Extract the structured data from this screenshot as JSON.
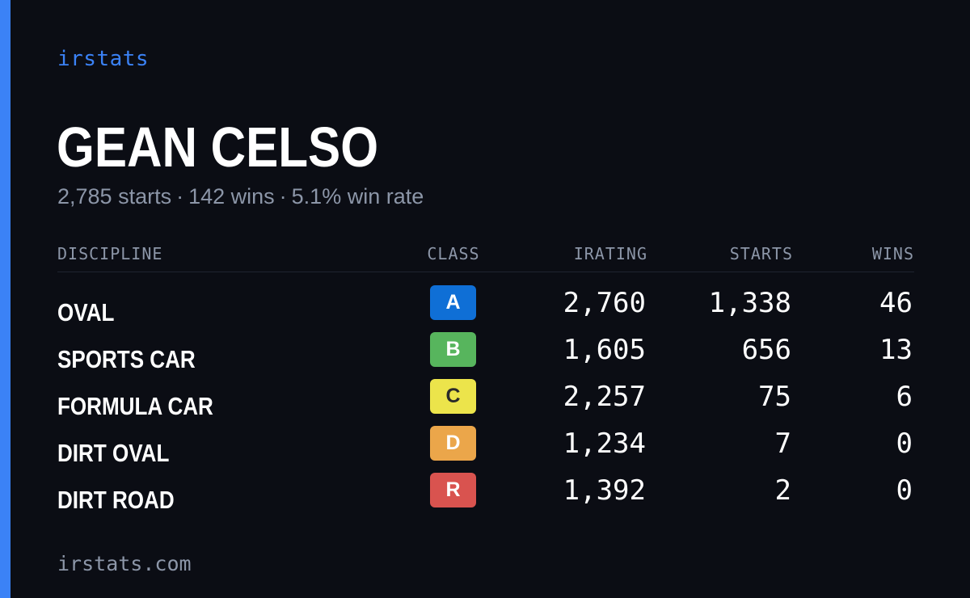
{
  "colors": {
    "accent": "#3b82f6",
    "background": "#0b0d14",
    "muted": "#8c96a8",
    "text": "#ffffff"
  },
  "brand": "irstats",
  "driver": {
    "name": "GEAN CELSO",
    "starts_text": "2,785 starts",
    "wins_text": "142 wins",
    "win_rate_text": "5.1% win rate",
    "separator": "·"
  },
  "table": {
    "headers": {
      "discipline": "DISCIPLINE",
      "class": "CLASS",
      "irating": "IRATING",
      "starts": "STARTS",
      "wins": "WINS"
    },
    "rows": [
      {
        "discipline": "OVAL",
        "class": "A",
        "class_color": "#0f6fd6",
        "class_text_color": "#ffffff",
        "irating": "2,760",
        "starts": "1,338",
        "wins": "46"
      },
      {
        "discipline": "SPORTS CAR",
        "class": "B",
        "class_color": "#57b55d",
        "class_text_color": "#ffffff",
        "irating": "1,605",
        "starts": "656",
        "wins": "13"
      },
      {
        "discipline": "FORMULA CAR",
        "class": "C",
        "class_color": "#ece44b",
        "class_text_color": "#2a2a2a",
        "irating": "2,257",
        "starts": "75",
        "wins": "6"
      },
      {
        "discipline": "DIRT OVAL",
        "class": "D",
        "class_color": "#eba64a",
        "class_text_color": "#ffffff",
        "irating": "1,234",
        "starts": "7",
        "wins": "0"
      },
      {
        "discipline": "DIRT ROAD",
        "class": "R",
        "class_color": "#d9534f",
        "class_text_color": "#ffffff",
        "irating": "1,392",
        "starts": "2",
        "wins": "0"
      }
    ]
  },
  "footer": "irstats.com"
}
